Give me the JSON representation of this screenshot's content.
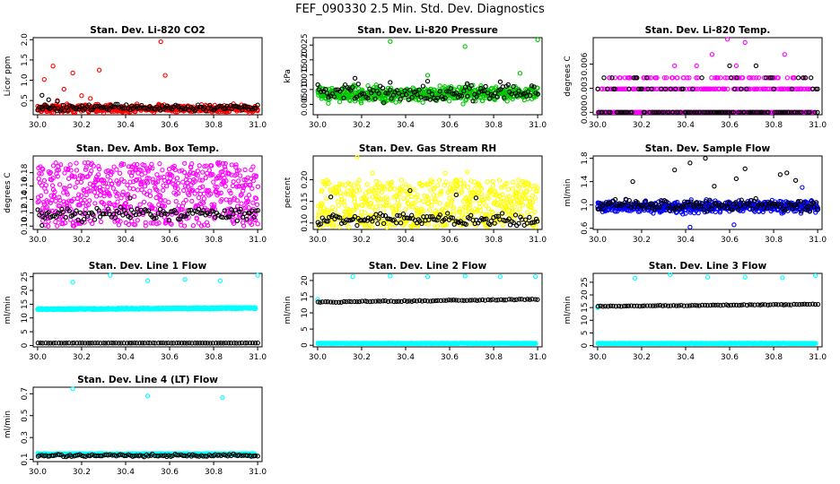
{
  "page": {
    "title": "FEF_090330  2.5 Min. Std. Dev. Diagnostics"
  },
  "colors": {
    "red": "#ff0000",
    "green": "#00c800",
    "magenta": "#ff00ff",
    "yellow": "#ffff00",
    "blue": "#0000ff",
    "cyan": "#00ffff",
    "black": "#000000"
  },
  "chart_data": [
    {
      "type": "scatter",
      "title": "Stan. Dev. Li-820 CO2",
      "ylabel": "Licor ppm",
      "xlabel": "",
      "xlim": [
        29.98,
        31.02
      ],
      "ylim": [
        0.15,
        2.05
      ],
      "xticks": [
        "30.0",
        "30.2",
        "30.4",
        "30.6",
        "30.8",
        "31.0"
      ],
      "yticks": [
        "0.5",
        "1.0",
        "1.5",
        "2.0"
      ],
      "grid": false,
      "series": [
        {
          "color": "red",
          "pattern": "band",
          "n": 560,
          "base": 0.3,
          "spread": 0.08,
          "outliers": [
            [
              30.03,
              1.02
            ],
            [
              30.07,
              1.35
            ],
            [
              30.12,
              0.78
            ],
            [
              30.16,
              1.18
            ],
            [
              30.2,
              0.62
            ],
            [
              30.28,
              1.25
            ],
            [
              30.56,
              1.95
            ],
            [
              30.58,
              1.12
            ],
            [
              30.24,
              0.55
            ],
            [
              30.09,
              0.5
            ]
          ]
        },
        {
          "color": "black",
          "pattern": "band",
          "n": 130,
          "base": 0.32,
          "spread": 0.07,
          "outliers": [
            [
              30.02,
              0.63
            ],
            [
              30.05,
              0.52
            ],
            [
              30.09,
              0.48
            ]
          ]
        }
      ]
    },
    {
      "type": "scatter",
      "title": "Stan. Dev. Li-820 Pressure",
      "ylabel": "kPa",
      "xlabel": "",
      "xlim": [
        29.98,
        31.02
      ],
      "ylim": [
        0.0015,
        0.0275
      ],
      "xticks": [
        "30.0",
        "30.2",
        "30.4",
        "30.6",
        "30.8",
        "31.0"
      ],
      "yticks": [
        "0.005",
        "0.010",
        "0.015",
        "0.020",
        "0.025"
      ],
      "grid": false,
      "series": [
        {
          "color": "green",
          "pattern": "band",
          "n": 600,
          "base": 0.0085,
          "spread": 0.0022,
          "outliers": [
            [
              30.33,
              0.0262
            ],
            [
              30.67,
              0.0245
            ],
            [
              31.0,
              0.0268
            ],
            [
              30.92,
              0.0155
            ],
            [
              30.5,
              0.0148
            ]
          ]
        },
        {
          "color": "black",
          "pattern": "band",
          "n": 120,
          "base": 0.0088,
          "spread": 0.0025,
          "outliers": [
            [
              30.17,
              0.0138
            ],
            [
              30.33,
              0.0124
            ],
            [
              30.5,
              0.0128
            ],
            [
              30.68,
              0.012
            ],
            [
              30.83,
              0.0126
            ]
          ]
        }
      ]
    },
    {
      "type": "scatter",
      "title": "Stan. Dev. Li-820 Temp.",
      "ylabel": "degrees C",
      "xlabel": "",
      "xlim": [
        29.98,
        31.02
      ],
      "ylim": [
        -0.0003,
        0.0093
      ],
      "xticks": [
        "30.0",
        "30.2",
        "30.4",
        "30.6",
        "30.8",
        "31.0"
      ],
      "yticks": [
        "0.000",
        "0.003",
        "0.006"
      ],
      "grid": false,
      "series": [
        {
          "color": "magenta",
          "pattern": "levels",
          "n": 560,
          "xmin": 30.0,
          "xmax": 30.98,
          "levels": [
            0.0,
            0.0029,
            0.0043
          ],
          "weights": [
            0.55,
            0.32,
            0.13
          ],
          "outliers": [
            [
              30.08,
              0.0043
            ],
            [
              30.1,
              0.0029
            ],
            [
              30.52,
              0.0072
            ],
            [
              30.59,
              0.0091
            ],
            [
              30.67,
              0.0087
            ],
            [
              30.85,
              0.0072
            ],
            [
              30.45,
              0.0058
            ],
            [
              30.63,
              0.0058
            ],
            [
              30.35,
              0.0058
            ]
          ]
        },
        {
          "color": "black",
          "pattern": "levels",
          "n": 140,
          "xmin": 30.0,
          "xmax": 31.0,
          "levels": [
            0.0,
            0.0029,
            0.0043
          ],
          "weights": [
            0.72,
            0.18,
            0.1
          ],
          "outliers": [
            [
              30.6,
              0.0058
            ],
            [
              30.72,
              0.0058
            ],
            [
              31.0,
              0.0029
            ]
          ]
        }
      ]
    },
    {
      "type": "scatter",
      "title": "Stan. Dev. Amb. Box Temp.",
      "ylabel": "degrees C",
      "xlabel": "",
      "xlim": [
        29.98,
        31.02
      ],
      "ylim": [
        0.095,
        0.205
      ],
      "xticks": [
        "30.0",
        "30.2",
        "30.4",
        "30.6",
        "30.8",
        "31.0"
      ],
      "yticks": [
        "0.10",
        "0.12",
        "0.14",
        "0.16",
        "0.18"
      ],
      "grid": false,
      "series": [
        {
          "color": "magenta",
          "pattern": "uniform",
          "n": 650,
          "lo": 0.1,
          "hi": 0.195,
          "outliers": []
        },
        {
          "color": "black",
          "pattern": "band",
          "n": 120,
          "base": 0.118,
          "spread": 0.009,
          "outliers": [
            [
              30.42,
              0.142
            ],
            [
              30.02,
              0.101
            ]
          ]
        }
      ]
    },
    {
      "type": "scatter",
      "title": "Stan. Dev. Gas Stream RH",
      "ylabel": "percent",
      "xlabel": "",
      "xlim": [
        29.98,
        31.02
      ],
      "ylim": [
        0.085,
        0.255
      ],
      "xticks": [
        "30.0",
        "30.2",
        "30.4",
        "30.6",
        "30.8",
        "31.0"
      ],
      "yticks": [
        "0.10",
        "0.15",
        "0.20"
      ],
      "grid": false,
      "series": [
        {
          "color": "yellow",
          "pattern": "uniform",
          "n": 600,
          "lo": 0.09,
          "hi": 0.2,
          "outliers": [
            [
              30.18,
              0.252
            ],
            [
              30.25,
              0.215
            ],
            [
              30.58,
              0.215
            ],
            [
              30.68,
              0.218
            ]
          ]
        },
        {
          "color": "black",
          "pattern": "band",
          "n": 130,
          "base": 0.108,
          "spread": 0.012,
          "outliers": [
            [
              30.06,
              0.16
            ],
            [
              30.42,
              0.175
            ],
            [
              30.63,
              0.165
            ],
            [
              30.72,
              0.158
            ]
          ]
        }
      ]
    },
    {
      "type": "scatter",
      "title": "Stan. Dev. Sample Flow",
      "ylabel": "ml/min",
      "xlabel": "",
      "xlim": [
        29.98,
        31.02
      ],
      "ylim": [
        0.58,
        1.84
      ],
      "xticks": [
        "30.0",
        "30.2",
        "30.4",
        "30.6",
        "30.8",
        "31.0"
      ],
      "yticks": [
        "0.6",
        "1.0",
        "1.4",
        "1.8"
      ],
      "grid": false,
      "series": [
        {
          "color": "blue",
          "pattern": "band",
          "n": 620,
          "base": 0.97,
          "spread": 0.09,
          "outliers": [
            [
              30.42,
              0.62
            ],
            [
              30.62,
              0.66
            ],
            [
              30.93,
              1.3
            ]
          ]
        },
        {
          "color": "black",
          "pattern": "band",
          "n": 140,
          "base": 1.0,
          "spread": 0.09,
          "outliers": [
            [
              30.16,
              1.4
            ],
            [
              30.35,
              1.6
            ],
            [
              30.42,
              1.72
            ],
            [
              30.49,
              1.8
            ],
            [
              30.63,
              1.45
            ],
            [
              30.67,
              1.62
            ],
            [
              30.83,
              1.52
            ],
            [
              30.86,
              1.55
            ],
            [
              30.9,
              1.42
            ],
            [
              30.53,
              1.32
            ]
          ]
        }
      ]
    },
    {
      "type": "scatter",
      "title": "Stan. Dev. Line 1 Flow",
      "ylabel": "ml/min",
      "xlabel": "",
      "xlim": [
        29.98,
        31.02
      ],
      "ylim": [
        -0.5,
        26.2
      ],
      "xticks": [
        "30.0",
        "30.2",
        "30.4",
        "30.6",
        "30.8",
        "31.0"
      ],
      "yticks": [
        "0",
        "5",
        "10",
        "15",
        "20",
        "25"
      ],
      "grid": false,
      "series": [
        {
          "color": "cyan",
          "pattern": "drift",
          "n": 600,
          "xmin": 30.0,
          "xmax": 30.99,
          "start": 13.2,
          "end": 13.6,
          "spread": 0.25,
          "outliers": [
            [
              30.16,
              23.0
            ],
            [
              30.33,
              25.5
            ],
            [
              30.5,
              23.5
            ],
            [
              30.67,
              24.0
            ],
            [
              30.83,
              23.5
            ],
            [
              31.0,
              25.5
            ]
          ]
        },
        {
          "color": "black",
          "pattern": "drift",
          "n": 85,
          "xmin": 30.0,
          "xmax": 31.0,
          "start": 0.9,
          "end": 0.9,
          "spread": 0.05,
          "outliers": []
        }
      ]
    },
    {
      "type": "scatter",
      "title": "Stan. Dev. Line 2 Flow",
      "ylabel": "ml/min",
      "xlabel": "",
      "xlim": [
        29.98,
        31.02
      ],
      "ylim": [
        -0.5,
        22.2
      ],
      "xticks": [
        "30.0",
        "30.2",
        "30.4",
        "30.6",
        "30.8",
        "31.0"
      ],
      "yticks": [
        "0",
        "5",
        "10",
        "15",
        "20"
      ],
      "grid": false,
      "series": [
        {
          "color": "cyan",
          "pattern": "drift",
          "n": 600,
          "xmin": 30.0,
          "xmax": 30.99,
          "start": 0.6,
          "end": 0.6,
          "spread": 0.05,
          "outliers": [
            [
              30.0,
              14.2
            ],
            [
              30.16,
              21.2
            ],
            [
              30.33,
              21.4
            ],
            [
              30.5,
              21.2
            ],
            [
              30.67,
              21.4
            ],
            [
              30.83,
              21.2
            ],
            [
              30.99,
              21.2
            ]
          ]
        },
        {
          "color": "black",
          "pattern": "drift",
          "n": 85,
          "xmin": 30.0,
          "xmax": 31.0,
          "start": 13.3,
          "end": 14.2,
          "spread": 0.15,
          "outliers": []
        }
      ]
    },
    {
      "type": "scatter",
      "title": "Stan. Dev. Line 3 Flow",
      "ylabel": "ml/min",
      "xlabel": "",
      "xlim": [
        29.98,
        31.02
      ],
      "ylim": [
        -0.5,
        28.5
      ],
      "xticks": [
        "30.0",
        "30.2",
        "30.4",
        "30.6",
        "30.8",
        "31.0"
      ],
      "yticks": [
        "0",
        "5",
        "10",
        "15",
        "20",
        "25"
      ],
      "grid": false,
      "series": [
        {
          "color": "cyan",
          "pattern": "drift",
          "n": 600,
          "xmin": 30.0,
          "xmax": 30.99,
          "start": 0.9,
          "end": 0.9,
          "spread": 0.05,
          "outliers": [
            [
              30.0,
              15.0
            ],
            [
              30.17,
              26.6
            ],
            [
              30.33,
              28.0
            ],
            [
              30.5,
              27.0
            ],
            [
              30.67,
              27.0
            ],
            [
              30.84,
              26.8
            ],
            [
              30.99,
              27.6
            ]
          ]
        },
        {
          "color": "black",
          "pattern": "drift",
          "n": 85,
          "xmin": 30.0,
          "xmax": 31.0,
          "start": 15.5,
          "end": 16.3,
          "spread": 0.15,
          "outliers": []
        }
      ]
    },
    {
      "type": "scatter",
      "title": "Stan. Dev. Line 4 (LT) Flow",
      "ylabel": "ml/min",
      "xlabel": "",
      "xlim": [
        29.98,
        31.02
      ],
      "ylim": [
        0.08,
        0.76
      ],
      "xticks": [
        "30.0",
        "30.2",
        "30.4",
        "30.6",
        "30.8",
        "31.0"
      ],
      "yticks": [
        "0.1",
        "0.3",
        "0.5",
        "0.7"
      ],
      "grid": false,
      "series": [
        {
          "color": "cyan",
          "pattern": "drift",
          "n": 600,
          "xmin": 30.0,
          "xmax": 30.99,
          "start": 0.148,
          "end": 0.148,
          "spread": 0.007,
          "outliers": [
            [
              30.16,
              0.745
            ],
            [
              30.5,
              0.68
            ],
            [
              30.84,
              0.665
            ]
          ]
        },
        {
          "color": "black",
          "pattern": "band",
          "n": 110,
          "base": 0.135,
          "spread": 0.012,
          "outliers": []
        }
      ]
    }
  ]
}
